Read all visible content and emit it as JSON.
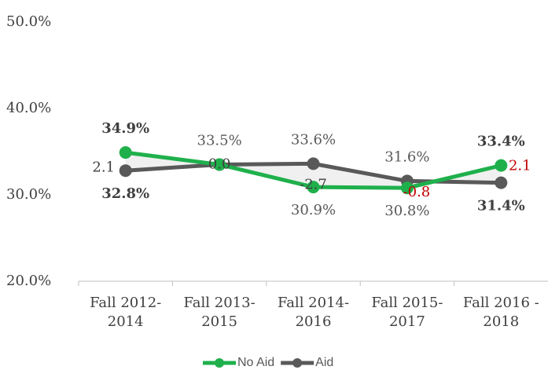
{
  "chart_data": {
    "type": "line",
    "categories": [
      [
        "Fall 2012-",
        "2014"
      ],
      [
        "Fall 2013-",
        "2015"
      ],
      [
        "Fall 2014-",
        "2016"
      ],
      [
        "Fall 2015-",
        "2017"
      ],
      [
        "Fall 2016 -",
        "2018"
      ]
    ],
    "series": [
      {
        "name": "No Aid",
        "color": "#1fb04c",
        "values": [
          34.9,
          33.5,
          30.9,
          30.8,
          33.4
        ],
        "value_labels": [
          "34.9%",
          "33.5%",
          "30.9%",
          "30.8%",
          "33.4%"
        ]
      },
      {
        "name": "Aid",
        "color": "#595959",
        "values": [
          32.8,
          33.5,
          33.6,
          31.6,
          31.4
        ],
        "value_labels": [
          "32.8%",
          null,
          "33.6%",
          "31.6%",
          "31.4%"
        ]
      }
    ],
    "annotations": [
      "2.1",
      "0.0",
      "-2.7",
      "-0.8",
      "2.1"
    ],
    "annotation_colors": [
      "#404040",
      "#404040",
      "#404040",
      "#c00000",
      "#c00000"
    ],
    "ylim": [
      20,
      50
    ],
    "yticks": [
      {
        "value": 20,
        "label": "20.0%"
      },
      {
        "value": 30,
        "label": "30.0%"
      },
      {
        "value": 40,
        "label": "40.0%"
      },
      {
        "value": 50,
        "label": "50.0%"
      }
    ],
    "legend": "bottom"
  }
}
